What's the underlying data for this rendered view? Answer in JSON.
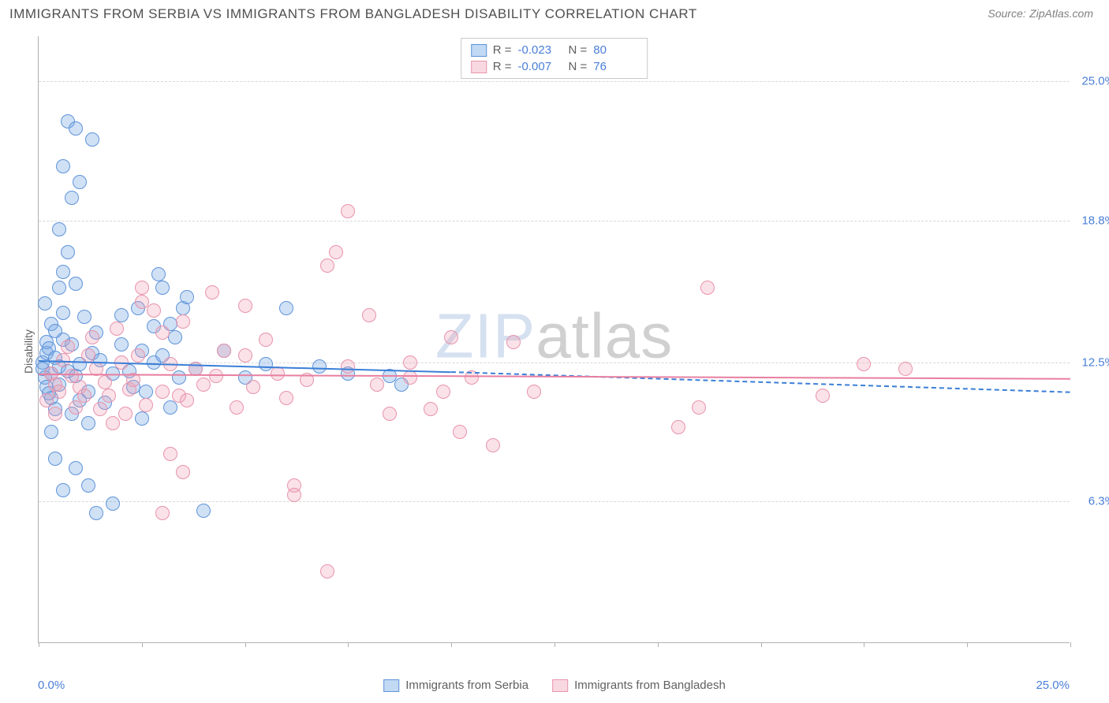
{
  "title": "IMMIGRANTS FROM SERBIA VS IMMIGRANTS FROM BANGLADESH DISABILITY CORRELATION CHART",
  "source_label": "Source:",
  "source_name": "ZipAtlas.com",
  "watermark_a": "ZIP",
  "watermark_b": "atlas",
  "y_axis_title": "Disability",
  "chart": {
    "type": "scatter",
    "xlim": [
      0,
      25
    ],
    "ylim": [
      0,
      27
    ],
    "x_tick_step": 2.5,
    "x_label_min": "0.0%",
    "x_label_max": "25.0%",
    "y_ticks": [
      6.3,
      12.5,
      18.8,
      25.0
    ],
    "y_tick_labels": [
      "6.3%",
      "12.5%",
      "18.8%",
      "25.0%"
    ],
    "grid_color": "#d8d8d8",
    "background": "#ffffff",
    "axis_color": "#b0b0b0",
    "marker_radius": 9,
    "series": [
      {
        "name": "Immigrants from Serbia",
        "color_fill": "rgba(120,170,230,0.35)",
        "color_stroke": "#5f93d8",
        "trend_color": "#3b7fd8",
        "R": "-0.023",
        "N": "80",
        "trend": {
          "x0": 0,
          "y0": 12.6,
          "x_solid_end": 10.0,
          "y_solid_end": 12.1,
          "x1": 25,
          "y1": 11.2
        },
        "points": [
          [
            0.1,
            12.5
          ],
          [
            0.1,
            12.2
          ],
          [
            0.2,
            12.9
          ],
          [
            0.15,
            11.8
          ],
          [
            0.2,
            13.4
          ],
          [
            0.3,
            12.0
          ],
          [
            0.25,
            13.1
          ],
          [
            0.3,
            14.2
          ],
          [
            0.2,
            11.4
          ],
          [
            0.3,
            10.9
          ],
          [
            0.4,
            12.7
          ],
          [
            0.15,
            15.1
          ],
          [
            0.3,
            9.4
          ],
          [
            0.5,
            12.3
          ],
          [
            0.25,
            11.1
          ],
          [
            0.6,
            13.5
          ],
          [
            0.4,
            10.4
          ],
          [
            0.5,
            11.5
          ],
          [
            0.7,
            12.1
          ],
          [
            0.8,
            10.2
          ],
          [
            0.6,
            14.7
          ],
          [
            0.9,
            11.9
          ],
          [
            0.4,
            13.9
          ],
          [
            0.5,
            15.8
          ],
          [
            0.6,
            16.5
          ],
          [
            1.0,
            12.4
          ],
          [
            0.8,
            13.3
          ],
          [
            1.2,
            11.2
          ],
          [
            1.0,
            10.8
          ],
          [
            1.3,
            12.9
          ],
          [
            0.9,
            16.0
          ],
          [
            0.7,
            17.4
          ],
          [
            1.5,
            12.6
          ],
          [
            1.4,
            13.8
          ],
          [
            1.1,
            14.5
          ],
          [
            1.8,
            12.0
          ],
          [
            1.6,
            10.7
          ],
          [
            1.2,
            9.8
          ],
          [
            0.5,
            18.4
          ],
          [
            0.8,
            19.8
          ],
          [
            1.0,
            20.5
          ],
          [
            0.6,
            21.2
          ],
          [
            1.3,
            22.4
          ],
          [
            0.7,
            23.2
          ],
          [
            0.9,
            22.9
          ],
          [
            2.0,
            13.3
          ],
          [
            2.2,
            12.1
          ],
          [
            2.0,
            14.6
          ],
          [
            2.3,
            11.4
          ],
          [
            2.5,
            13.0
          ],
          [
            2.4,
            14.9
          ],
          [
            2.8,
            12.5
          ],
          [
            2.6,
            11.2
          ],
          [
            2.8,
            14.1
          ],
          [
            2.9,
            16.4
          ],
          [
            3.0,
            12.8
          ],
          [
            3.2,
            10.5
          ],
          [
            3.3,
            13.6
          ],
          [
            3.4,
            11.8
          ],
          [
            3.5,
            14.9
          ],
          [
            3.6,
            15.4
          ],
          [
            0.4,
            8.2
          ],
          [
            0.9,
            7.8
          ],
          [
            1.2,
            7.0
          ],
          [
            1.8,
            6.2
          ],
          [
            1.4,
            5.8
          ],
          [
            0.6,
            6.8
          ],
          [
            2.5,
            10.0
          ],
          [
            3.0,
            15.8
          ],
          [
            3.2,
            14.2
          ],
          [
            3.8,
            12.2
          ],
          [
            4.0,
            5.9
          ],
          [
            4.5,
            13.0
          ],
          [
            5.0,
            11.8
          ],
          [
            5.5,
            12.4
          ],
          [
            6.0,
            14.9
          ],
          [
            6.8,
            12.3
          ],
          [
            7.5,
            12.0
          ],
          [
            8.8,
            11.5
          ],
          [
            8.5,
            11.9
          ]
        ]
      },
      {
        "name": "Immigrants from Bangladesh",
        "color_fill": "rgba(240,160,180,0.30)",
        "color_stroke": "#e893ac",
        "trend_color": "#e87fa0",
        "R": "-0.007",
        "N": "76",
        "trend": {
          "x0": 0,
          "y0": 12.0,
          "x_solid_end": 25,
          "y_solid_end": 11.8,
          "x1": 25,
          "y1": 11.8
        },
        "points": [
          [
            0.3,
            12.0
          ],
          [
            0.4,
            11.5
          ],
          [
            0.2,
            10.8
          ],
          [
            0.5,
            11.2
          ],
          [
            0.6,
            12.6
          ],
          [
            0.4,
            10.2
          ],
          [
            0.8,
            11.9
          ],
          [
            0.7,
            13.2
          ],
          [
            1.0,
            11.4
          ],
          [
            0.9,
            10.5
          ],
          [
            1.2,
            12.8
          ],
          [
            1.1,
            11.0
          ],
          [
            1.4,
            12.2
          ],
          [
            1.5,
            10.4
          ],
          [
            1.3,
            13.6
          ],
          [
            1.6,
            11.6
          ],
          [
            1.8,
            9.8
          ],
          [
            1.7,
            11.0
          ],
          [
            2.0,
            12.5
          ],
          [
            1.9,
            14.0
          ],
          [
            2.2,
            11.3
          ],
          [
            2.1,
            10.2
          ],
          [
            2.4,
            12.8
          ],
          [
            2.3,
            11.7
          ],
          [
            2.6,
            10.6
          ],
          [
            2.5,
            15.2
          ],
          [
            2.5,
            15.8
          ],
          [
            2.8,
            14.8
          ],
          [
            3.0,
            11.2
          ],
          [
            3.2,
            12.4
          ],
          [
            3.0,
            13.8
          ],
          [
            3.4,
            11.0
          ],
          [
            3.5,
            14.3
          ],
          [
            3.6,
            10.8
          ],
          [
            3.8,
            12.2
          ],
          [
            4.0,
            11.5
          ],
          [
            4.2,
            15.6
          ],
          [
            4.5,
            13.0
          ],
          [
            4.3,
            11.9
          ],
          [
            4.8,
            10.5
          ],
          [
            5.0,
            12.8
          ],
          [
            5.2,
            11.4
          ],
          [
            5.5,
            13.5
          ],
          [
            5.0,
            15.0
          ],
          [
            5.8,
            12.0
          ],
          [
            6.0,
            10.9
          ],
          [
            6.2,
            7.0
          ],
          [
            6.2,
            6.6
          ],
          [
            6.5,
            11.7
          ],
          [
            7.0,
            16.8
          ],
          [
            7.2,
            17.4
          ],
          [
            7.5,
            19.2
          ],
          [
            7.5,
            12.3
          ],
          [
            8.0,
            14.6
          ],
          [
            8.2,
            11.5
          ],
          [
            8.5,
            10.2
          ],
          [
            9.0,
            11.8
          ],
          [
            9.0,
            12.5
          ],
          [
            9.5,
            10.4
          ],
          [
            9.8,
            11.2
          ],
          [
            10.0,
            13.6
          ],
          [
            10.2,
            9.4
          ],
          [
            10.5,
            11.8
          ],
          [
            11.0,
            8.8
          ],
          [
            11.5,
            13.4
          ],
          [
            12.0,
            11.2
          ],
          [
            7.0,
            3.2
          ],
          [
            3.0,
            5.8
          ],
          [
            3.5,
            7.6
          ],
          [
            15.5,
            9.6
          ],
          [
            16.0,
            10.5
          ],
          [
            16.2,
            15.8
          ],
          [
            19.0,
            11.0
          ],
          [
            20.0,
            12.4
          ],
          [
            21.0,
            12.2
          ],
          [
            3.2,
            8.4
          ]
        ]
      }
    ]
  },
  "legend_bottom": {
    "item1": "Immigrants from Serbia",
    "item2": "Immigrants from Bangladesh"
  },
  "legend_top_labels": {
    "R": "R =",
    "N": "N ="
  }
}
